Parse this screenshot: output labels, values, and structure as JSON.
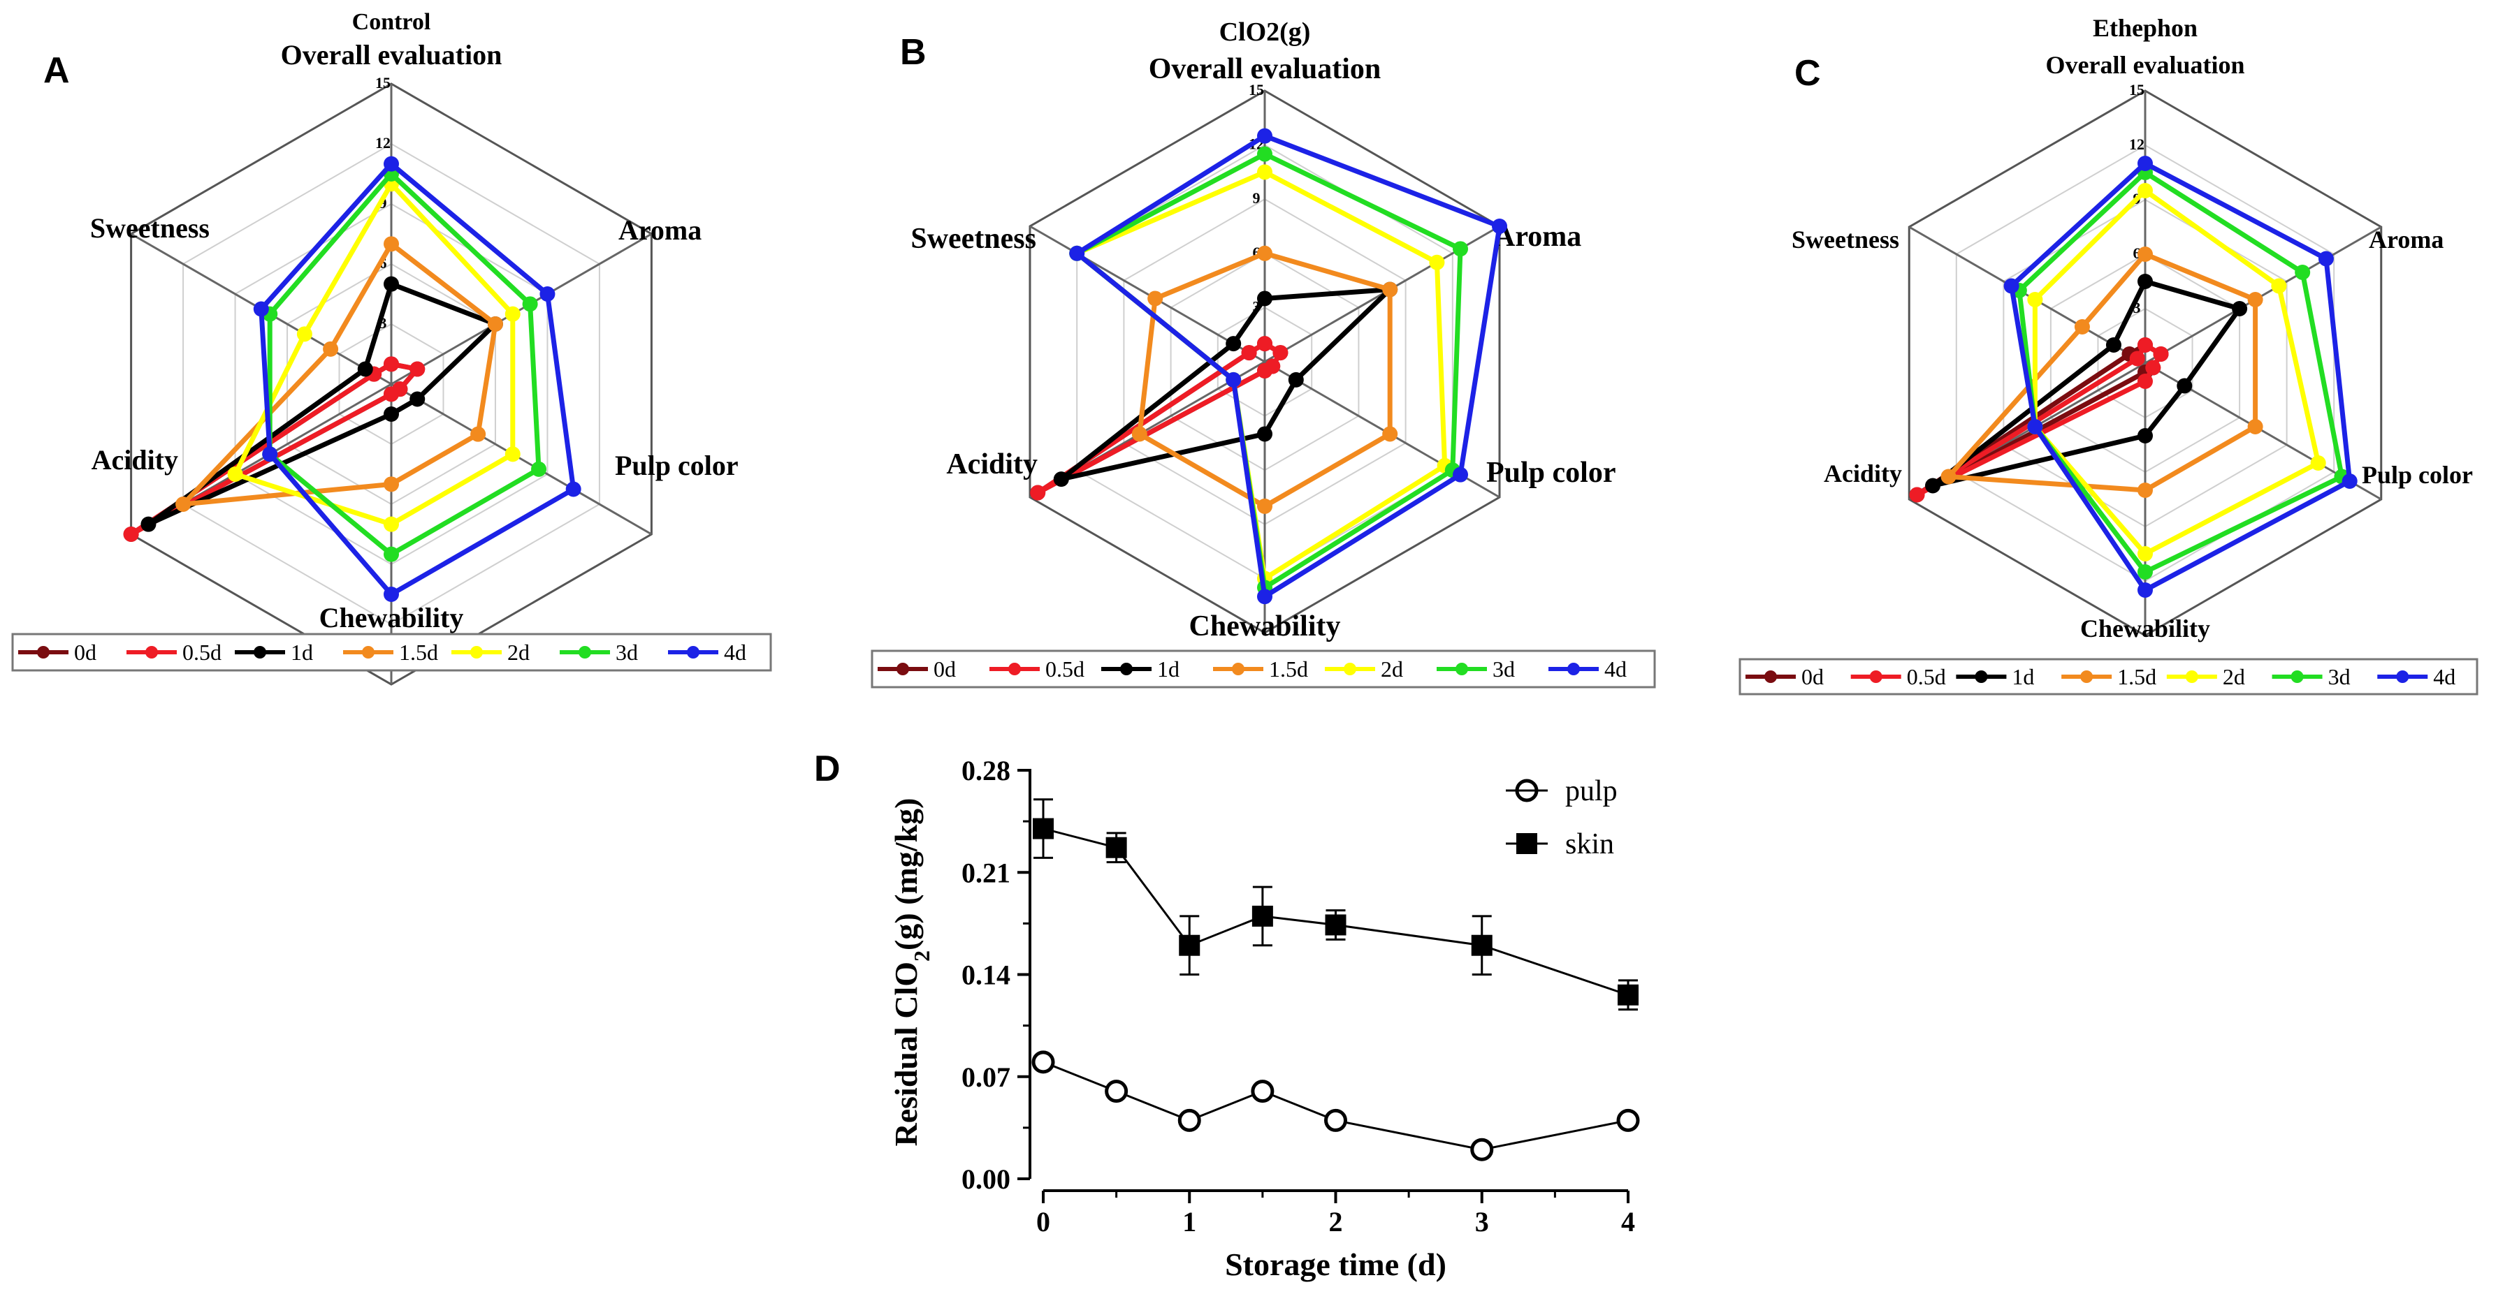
{
  "panel_letters": [
    "A",
    "B",
    "C",
    "D"
  ],
  "radar_axes": [
    "Overall evaluation",
    "Aroma",
    "Pulp color",
    "Chewability",
    "Acidity",
    "Sweetness"
  ],
  "radar_ticks": [
    "3",
    "6",
    "9",
    "12",
    "15"
  ],
  "legend_items": [
    "0d",
    "0.5d",
    "1d",
    "1.5d",
    "2d",
    "3d",
    "4d"
  ],
  "series_colors": [
    "#7a0c10",
    "#ee1c25",
    "#000000",
    "#f28a1e",
    "#ffff00",
    "#22dd22",
    "#1c22e6"
  ],
  "chart_data": [
    {
      "type": "radar",
      "title": "Control",
      "axes": [
        "Overall evaluation",
        "Aroma",
        "Pulp color",
        "Chewability",
        "Acidity",
        "Sweetness"
      ],
      "rmax": 15,
      "ticks": [
        3,
        6,
        9,
        12,
        15
      ],
      "series": [
        {
          "name": "0d",
          "values": [
            1,
            1.5,
            0.5,
            0.5,
            15,
            1
          ]
        },
        {
          "name": "0.5d",
          "values": [
            1,
            1.5,
            0.5,
            0.5,
            15,
            1
          ]
        },
        {
          "name": "1d",
          "values": [
            5,
            6,
            1.5,
            1.5,
            14,
            1.5
          ]
        },
        {
          "name": "1.5d",
          "values": [
            7,
            6,
            5,
            5,
            12,
            3.5
          ]
        },
        {
          "name": "2d",
          "values": [
            10,
            7,
            7,
            7,
            9,
            5
          ]
        },
        {
          "name": "3d",
          "values": [
            10.5,
            8,
            8.5,
            8.5,
            7,
            7
          ]
        },
        {
          "name": "4d",
          "values": [
            11,
            9,
            10.5,
            10.5,
            7,
            7.5
          ]
        }
      ]
    },
    {
      "type": "radar",
      "title": "ClO2(g)",
      "axes": [
        "Overall evaluation",
        "Aroma",
        "Pulp color",
        "Chewability",
        "Acidity",
        "Sweetness"
      ],
      "rmax": 15,
      "ticks": [
        3,
        6,
        9,
        12,
        15
      ],
      "series": [
        {
          "name": "0d",
          "values": [
            1,
            1,
            0.5,
            0.5,
            14.5,
            1
          ]
        },
        {
          "name": "0.5d",
          "values": [
            1,
            1,
            0.5,
            0.5,
            14.5,
            1
          ]
        },
        {
          "name": "1d",
          "values": [
            3.5,
            8,
            2,
            4,
            13,
            2
          ]
        },
        {
          "name": "1.5d",
          "values": [
            6,
            8,
            8,
            8,
            8,
            7
          ]
        },
        {
          "name": "2d",
          "values": [
            10.5,
            11,
            11.5,
            12,
            2,
            12
          ]
        },
        {
          "name": "3d",
          "values": [
            11.5,
            12.5,
            12,
            12.5,
            2,
            12
          ]
        },
        {
          "name": "4d",
          "values": [
            12.5,
            15,
            12.5,
            13,
            2,
            12
          ]
        }
      ]
    },
    {
      "type": "radar",
      "title": "Ethephon",
      "axes": [
        "Overall evaluation",
        "Aroma",
        "Pulp color",
        "Chewability",
        "Acidity",
        "Sweetness"
      ],
      "rmax": 15,
      "ticks": [
        3,
        6,
        9,
        12,
        15
      ],
      "series": [
        {
          "name": "0d",
          "values": [
            1,
            1,
            0.5,
            0.5,
            14.5,
            1
          ]
        },
        {
          "name": "0.5d",
          "values": [
            1,
            1,
            0.5,
            1,
            14.5,
            0.5
          ]
        },
        {
          "name": "1d",
          "values": [
            4.5,
            6,
            2.5,
            4,
            13.5,
            2
          ]
        },
        {
          "name": "1.5d",
          "values": [
            6,
            7,
            7,
            7,
            12.5,
            4
          ]
        },
        {
          "name": "2d",
          "values": [
            9.5,
            8.5,
            11,
            10.5,
            7,
            7
          ]
        },
        {
          "name": "3d",
          "values": [
            10.5,
            10,
            12.5,
            11.5,
            7,
            8
          ]
        },
        {
          "name": "4d",
          "values": [
            11,
            11.5,
            13,
            12.5,
            7,
            8.5
          ]
        }
      ]
    },
    {
      "type": "line",
      "title": "",
      "xlabel": "Storage time (d)",
      "ylabel_main": "Residual ClO",
      "ylabel_sub": "2",
      "ylabel_tail": "(g) (mg/kg)",
      "xlim": [
        0,
        4
      ],
      "ylim": [
        0,
        0.28
      ],
      "xticks": [
        "0",
        "1",
        "2",
        "3",
        "4"
      ],
      "yticks": [
        "0.00",
        "0.07",
        "0.14",
        "0.21",
        "0.28"
      ],
      "x": [
        0,
        0.5,
        1,
        1.5,
        2,
        3,
        4
      ],
      "series": [
        {
          "name": "pulp",
          "values": [
            0.08,
            0.06,
            0.04,
            0.06,
            0.04,
            0.02,
            0.04
          ]
        },
        {
          "name": "skin",
          "values": [
            0.24,
            0.227,
            0.16,
            0.18,
            0.174,
            0.16,
            0.126
          ],
          "error": [
            0.02,
            0.01,
            0.02,
            0.02,
            0.01,
            0.02,
            0.01
          ]
        }
      ]
    }
  ]
}
